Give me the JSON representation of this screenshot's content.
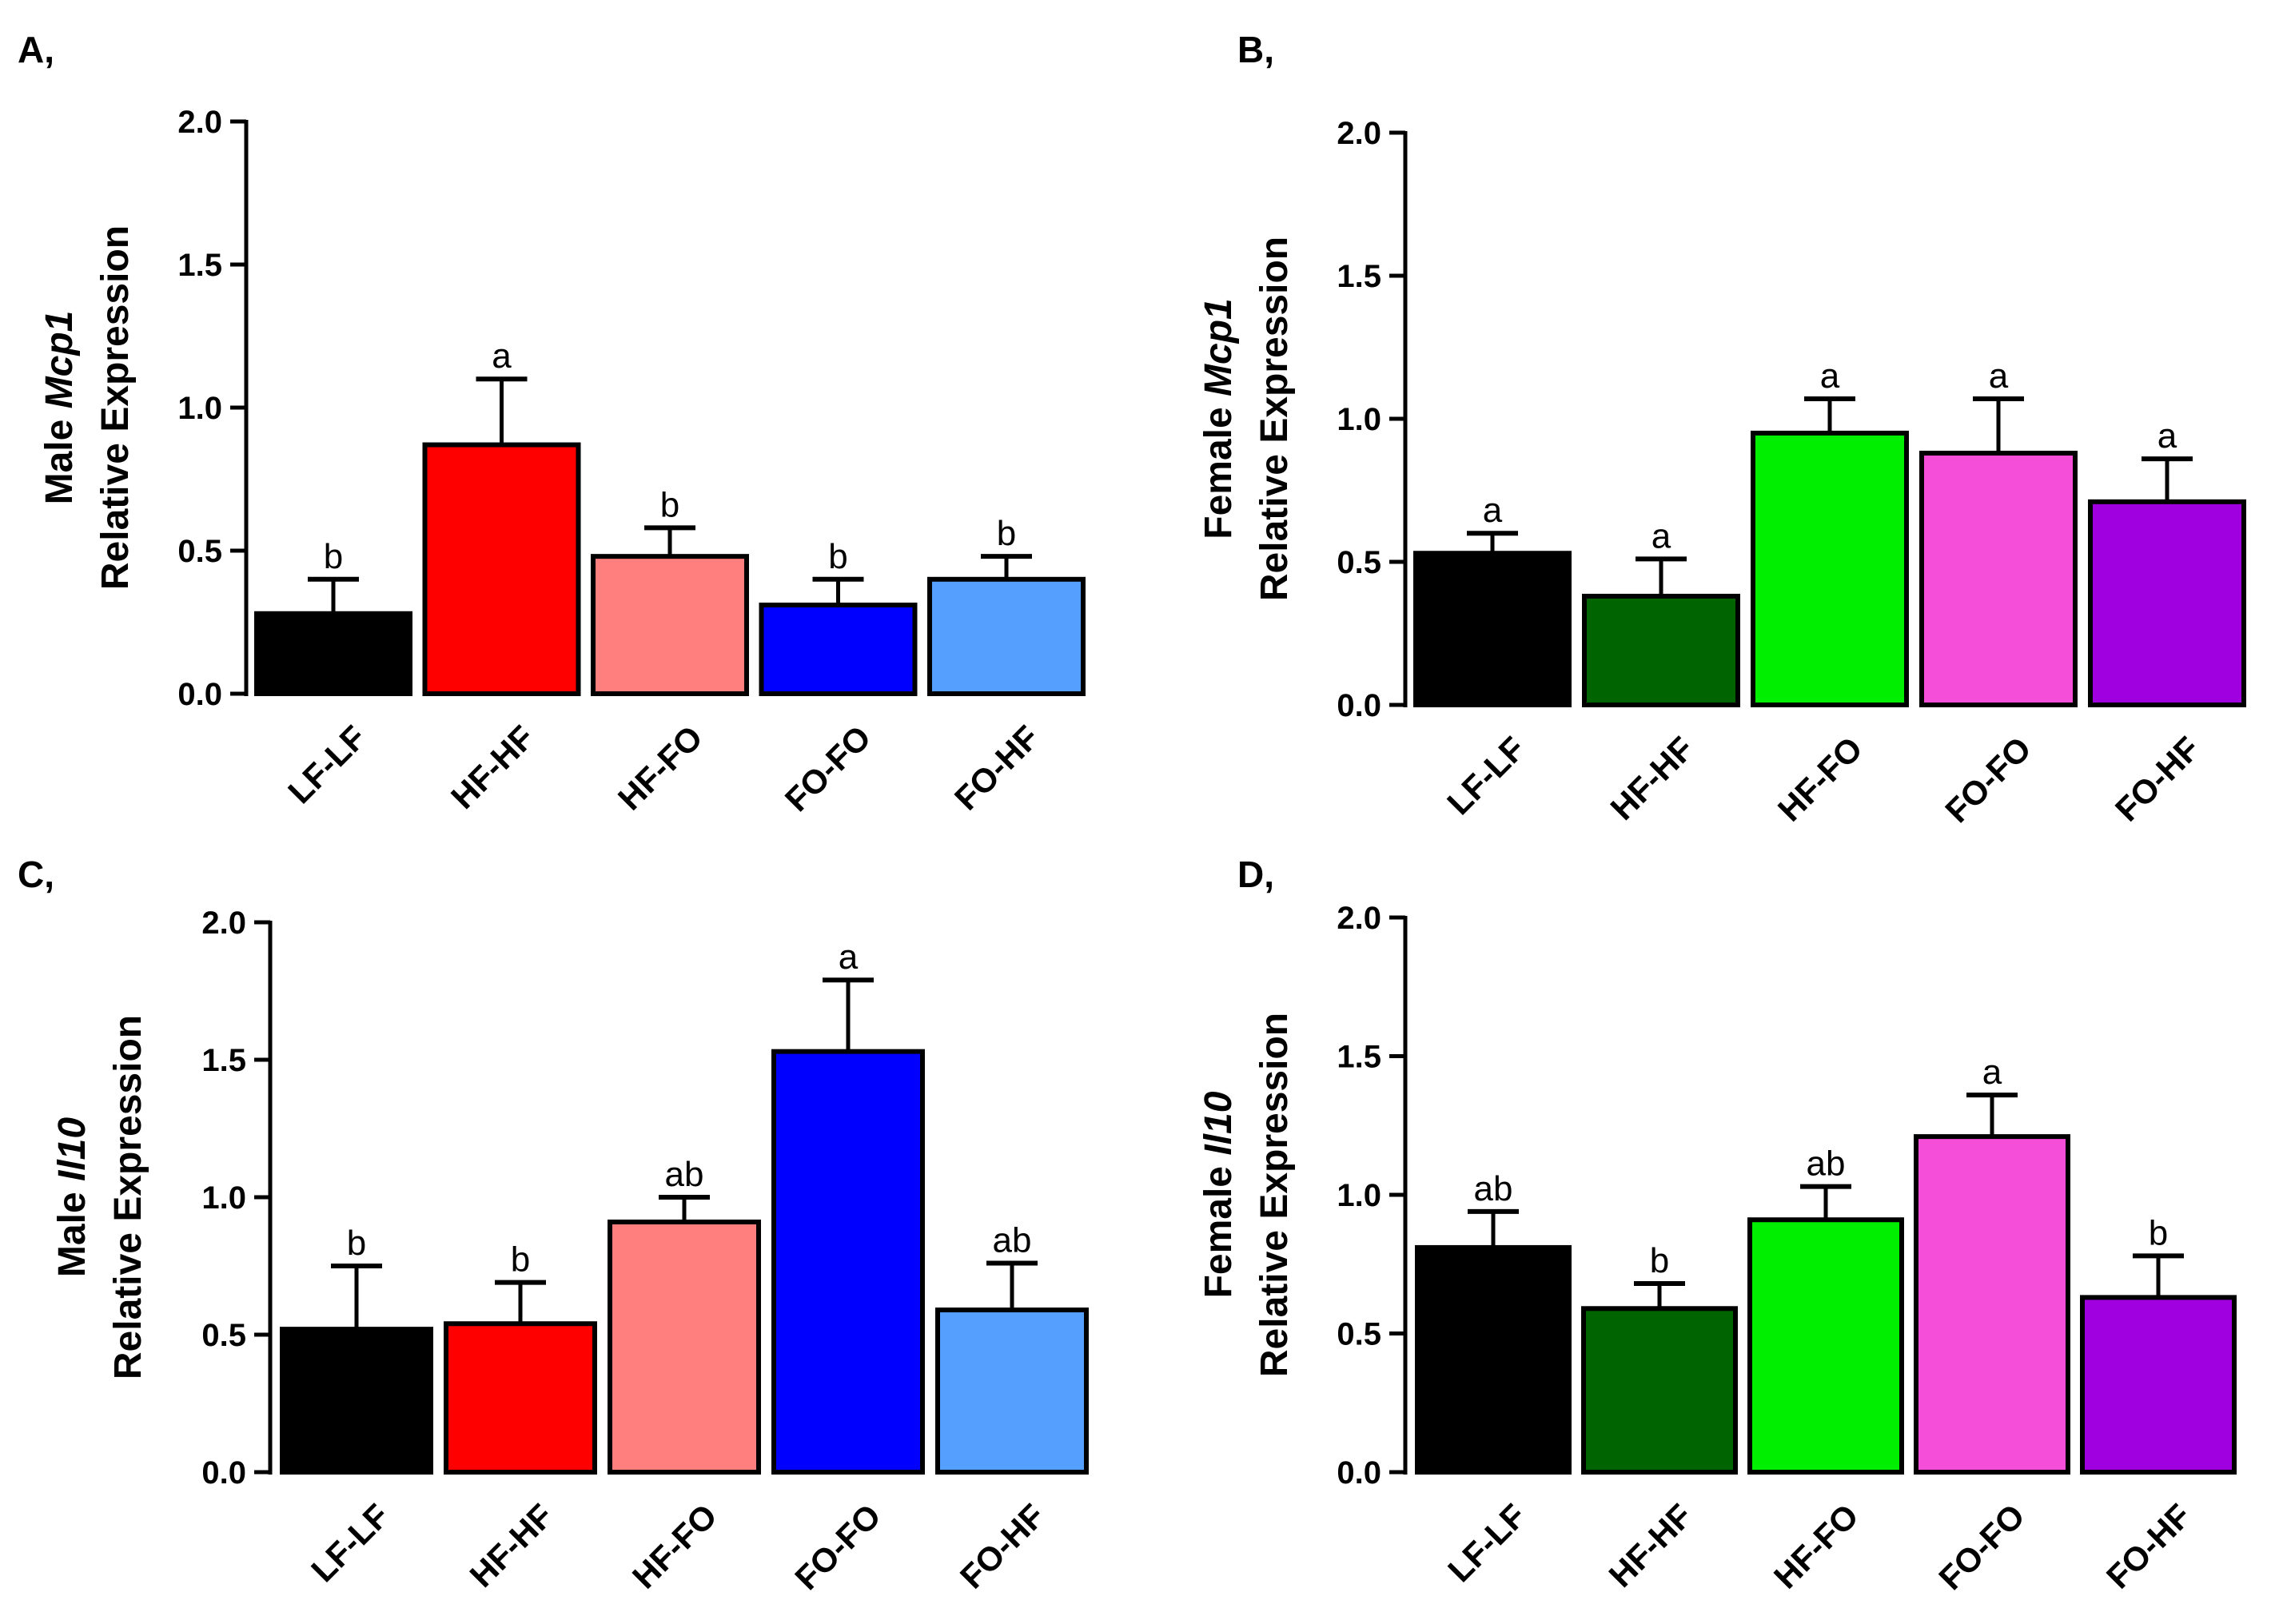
{
  "chart_data": [
    {
      "panel": "A,",
      "type": "bar",
      "ylabel_prefix": "Male ",
      "ylabel_gene": "Mcp1",
      "ylabel_line2": "Relative Expression",
      "ylim": [
        0,
        2.0
      ],
      "yticks": [
        "0.0",
        "0.5",
        "1.0",
        "1.5",
        "2.0"
      ],
      "categories": [
        "LF-LF",
        "HF-HF",
        "HF-FO",
        "FO-FO",
        "FO-HF"
      ],
      "values": [
        0.28,
        0.87,
        0.48,
        0.31,
        0.4
      ],
      "errors": [
        0.12,
        0.23,
        0.1,
        0.09,
        0.08
      ],
      "letters": [
        "b",
        "a",
        "b",
        "b",
        "b"
      ],
      "colors": [
        "#000000",
        "#ff0000",
        "#ff7f7f",
        "#0000ff",
        "#55a0ff"
      ]
    },
    {
      "panel": "B,",
      "type": "bar",
      "ylabel_prefix": "Female ",
      "ylabel_gene": "Mcp1",
      "ylabel_line2": "Relative Expression",
      "ylim": [
        0,
        2.0
      ],
      "yticks": [
        "0.0",
        "0.5",
        "1.0",
        "1.5",
        "2.0"
      ],
      "categories": [
        "LF-LF",
        "HF-HF",
        "HF-FO",
        "FO-FO",
        "FO-HF"
      ],
      "values": [
        0.53,
        0.38,
        0.95,
        0.88,
        0.71
      ],
      "errors": [
        0.07,
        0.13,
        0.12,
        0.19,
        0.15
      ],
      "letters": [
        "a",
        "a",
        "a",
        "a",
        "a"
      ],
      "colors": [
        "#000000",
        "#006400",
        "#00ee00",
        "#f54ed8",
        "#a000e0"
      ]
    },
    {
      "panel": "C,",
      "type": "bar",
      "ylabel_prefix": "Male ",
      "ylabel_gene": "Il10",
      "ylabel_line2": "Relative Expression",
      "ylim": [
        0,
        2.0
      ],
      "yticks": [
        "0.0",
        "0.5",
        "1.0",
        "1.5",
        "2.0"
      ],
      "categories": [
        "LF-LF",
        "HF-HF",
        "HF-FO",
        "FO-FO",
        "FO-HF"
      ],
      "values": [
        0.52,
        0.54,
        0.91,
        1.53,
        0.59
      ],
      "errors": [
        0.23,
        0.15,
        0.09,
        0.26,
        0.17
      ],
      "letters": [
        "b",
        "b",
        "ab",
        "a",
        "ab"
      ],
      "colors": [
        "#000000",
        "#ff0000",
        "#ff7f7f",
        "#0000ff",
        "#55a0ff"
      ]
    },
    {
      "panel": "D,",
      "type": "bar",
      "ylabel_prefix": "Female ",
      "ylabel_gene": "Il10",
      "ylabel_line2": "Relative Expression",
      "ylim": [
        0,
        2.0
      ],
      "yticks": [
        "0.0",
        "0.5",
        "1.0",
        "1.5",
        "2.0"
      ],
      "categories": [
        "LF-LF",
        "HF-HF",
        "HF-FO",
        "FO-FO",
        "FO-HF"
      ],
      "values": [
        0.81,
        0.59,
        0.91,
        1.21,
        0.63
      ],
      "errors": [
        0.13,
        0.09,
        0.12,
        0.15,
        0.15
      ],
      "letters": [
        "ab",
        "b",
        "ab",
        "a",
        "b"
      ],
      "colors": [
        "#000000",
        "#006400",
        "#00ee00",
        "#f54ed8",
        "#a000e0"
      ]
    }
  ]
}
